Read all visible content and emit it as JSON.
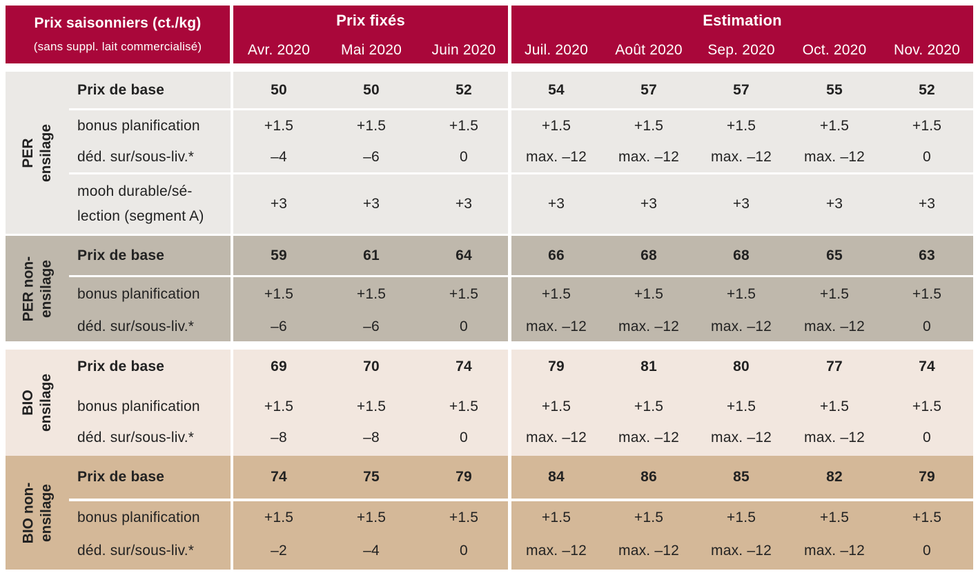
{
  "header": {
    "title": "Prix saisonniers (ct./kg)",
    "subtitle": "(sans suppl. lait commercialisé)",
    "group_fixed": "Prix fixés",
    "group_estimate": "Estimation",
    "months": [
      "Avr. 2020",
      "Mai 2020",
      "Juin 2020",
      "Juil. 2020",
      "Août 2020",
      "Sep. 2020",
      "Oct. 2020",
      "Nov. 2020"
    ]
  },
  "groups": [
    {
      "label_lines": [
        "PER",
        "ensilage"
      ],
      "color": "#ebe9e6",
      "rows": [
        {
          "label": "Prix de base",
          "bold": true,
          "values": [
            "50",
            "50",
            "52",
            "54",
            "57",
            "57",
            "55",
            "52"
          ]
        },
        {
          "label": "bonus planification",
          "bold": false,
          "values": [
            "+1.5",
            "+1.5",
            "+1.5",
            "+1.5",
            "+1.5",
            "+1.5",
            "+1.5",
            "+1.5"
          ]
        },
        {
          "label": "déd. sur/sous-liv.*",
          "bold": false,
          "values": [
            "–4",
            "–6",
            "0",
            "max. –12",
            "max. –12",
            "max. –12",
            "max. –12",
            "0"
          ]
        },
        {
          "label_lines": [
            "mooh durable/sé-",
            "lection (segment A)"
          ],
          "bold": false,
          "values": [
            "+3",
            "+3",
            "+3",
            "+3",
            "+3",
            "+3",
            "+3",
            "+3"
          ]
        }
      ]
    },
    {
      "label_lines": [
        "PER non-",
        "ensilage"
      ],
      "color": "#bfb8ac",
      "rows": [
        {
          "label": "Prix de base",
          "bold": true,
          "values": [
            "59",
            "61",
            "64",
            "66",
            "68",
            "68",
            "65",
            "63"
          ]
        },
        {
          "label": "bonus planification",
          "bold": false,
          "values": [
            "+1.5",
            "+1.5",
            "+1.5",
            "+1.5",
            "+1.5",
            "+1.5",
            "+1.5",
            "+1.5"
          ]
        },
        {
          "label": "déd. sur/sous-liv.*",
          "bold": false,
          "values": [
            "–6",
            "–6",
            "0",
            "max. –12",
            "max. –12",
            "max. –12",
            "max. –12",
            "0"
          ]
        }
      ]
    },
    {
      "label_lines": [
        "BIO",
        "ensilage"
      ],
      "color": "#f2e7df",
      "rows": [
        {
          "label": "Prix de base",
          "bold": true,
          "values": [
            "69",
            "70",
            "74",
            "79",
            "81",
            "80",
            "77",
            "74"
          ]
        },
        {
          "label": "bonus planification",
          "bold": false,
          "values": [
            "+1.5",
            "+1.5",
            "+1.5",
            "+1.5",
            "+1.5",
            "+1.5",
            "+1.5",
            "+1.5"
          ]
        },
        {
          "label": "déd. sur/sous-liv.*",
          "bold": false,
          "values": [
            "–8",
            "–8",
            "0",
            "max. –12",
            "max. –12",
            "max. –12",
            "max. –12",
            "0"
          ]
        }
      ]
    },
    {
      "label_lines": [
        "BIO non-",
        "ensilage"
      ],
      "color": "#d4b898",
      "rows": [
        {
          "label": "Prix de base",
          "bold": true,
          "values": [
            "74",
            "75",
            "79",
            "84",
            "86",
            "85",
            "82",
            "79"
          ]
        },
        {
          "label": "bonus planification",
          "bold": false,
          "values": [
            "+1.5",
            "+1.5",
            "+1.5",
            "+1.5",
            "+1.5",
            "+1.5",
            "+1.5",
            "+1.5"
          ]
        },
        {
          "label": "déd. sur/sous-liv.*",
          "bold": false,
          "values": [
            "–2",
            "–4",
            "0",
            "max. –12",
            "max. –12",
            "max. –12",
            "max. –12",
            "0"
          ]
        }
      ]
    }
  ]
}
